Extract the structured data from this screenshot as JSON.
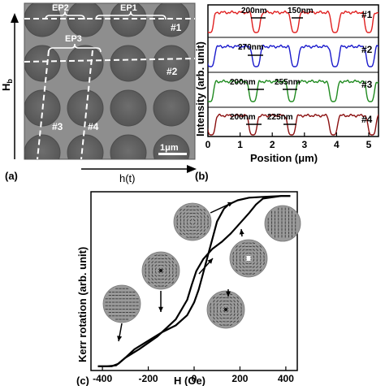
{
  "panel_a": {
    "label": "(a)",
    "axis_vertical": "H",
    "axis_vertical_sub": "b",
    "axis_horizontal": "h(t)",
    "ep_labels": [
      "EP2",
      "EP1",
      "EP3"
    ],
    "line_labels": [
      "#1",
      "#2",
      "#3",
      "#4"
    ],
    "scale_bar": "1μm",
    "colors": {
      "micrograph": "#8c8c8c",
      "dot": "#5f5f5f",
      "dash": "#ffffff"
    }
  },
  "panel_b": {
    "label": "(b)",
    "ylabel": "Intensity (arb. unit)",
    "xlabel": "Position (μm)",
    "xticks": [
      "0",
      "1",
      "2",
      "3",
      "4",
      "5"
    ],
    "traces": [
      {
        "tag": "#1",
        "color": "#e02020",
        "annotations": [
          "200nm",
          "150nm"
        ]
      },
      {
        "tag": "#2",
        "color": "#1a1acc",
        "annotations": [
          "270nm"
        ]
      },
      {
        "tag": "#3",
        "color": "#1f8a1f",
        "annotations": [
          "200nm",
          "255nm"
        ]
      },
      {
        "tag": "#4",
        "color": "#8b1010",
        "annotations": [
          "200nm",
          "225nm"
        ]
      }
    ]
  },
  "panel_c": {
    "label": "(c)",
    "ylabel": "Kerr rotation (arb. unit)",
    "xlabel": "H (Oe)",
    "xticks": [
      "-400",
      "-200",
      "0",
      "200",
      "400"
    ]
  },
  "chart_data": [
    {
      "type": "line",
      "panel": "b",
      "xlabel": "Position (μm)",
      "ylabel": "Intensity (arb. unit)",
      "xlim": [
        0,
        5.4
      ],
      "series": [
        {
          "name": "#1",
          "width_annotations_nm": [
            200,
            150
          ]
        },
        {
          "name": "#2",
          "width_annotations_nm": [
            270
          ]
        },
        {
          "name": "#3",
          "width_annotations_nm": [
            200,
            255
          ]
        },
        {
          "name": "#4",
          "width_annotations_nm": [
            200,
            225
          ]
        }
      ]
    },
    {
      "type": "line",
      "panel": "c",
      "xlabel": "H (Oe)",
      "ylabel": "Kerr rotation (arb. unit)",
      "xlim": [
        -450,
        450
      ],
      "ylim": [
        -1.05,
        1.05
      ],
      "series": [
        {
          "branch": "descending",
          "x": [
            420,
            380,
            300,
            270,
            240,
            200,
            160,
            120,
            80,
            40,
            10,
            0,
            -10,
            -30,
            -80,
            -160,
            -240,
            -300,
            -330,
            -360,
            -400,
            -420
          ],
          "y": [
            1.0,
            1.0,
            0.97,
            0.9,
            0.8,
            0.68,
            0.56,
            0.46,
            0.38,
            0.26,
            0.12,
            0.04,
            -0.04,
            -0.22,
            -0.45,
            -0.65,
            -0.8,
            -0.9,
            -0.97,
            -1.0,
            -1.0,
            -1.0
          ]
        },
        {
          "branch": "ascending",
          "x": [
            -420,
            -380,
            -340,
            -300,
            -260,
            -200,
            -140,
            -80,
            -30,
            0,
            20,
            40,
            60,
            80,
            100,
            130,
            150,
            190,
            240,
            300,
            380,
            420
          ],
          "y": [
            -1.0,
            -1.0,
            -0.99,
            -0.9,
            -0.8,
            -0.7,
            -0.6,
            -0.52,
            -0.4,
            -0.25,
            -0.1,
            0.1,
            0.3,
            0.5,
            0.7,
            0.85,
            0.9,
            0.95,
            0.98,
            0.99,
            1.0,
            1.0
          ]
        }
      ]
    }
  ]
}
